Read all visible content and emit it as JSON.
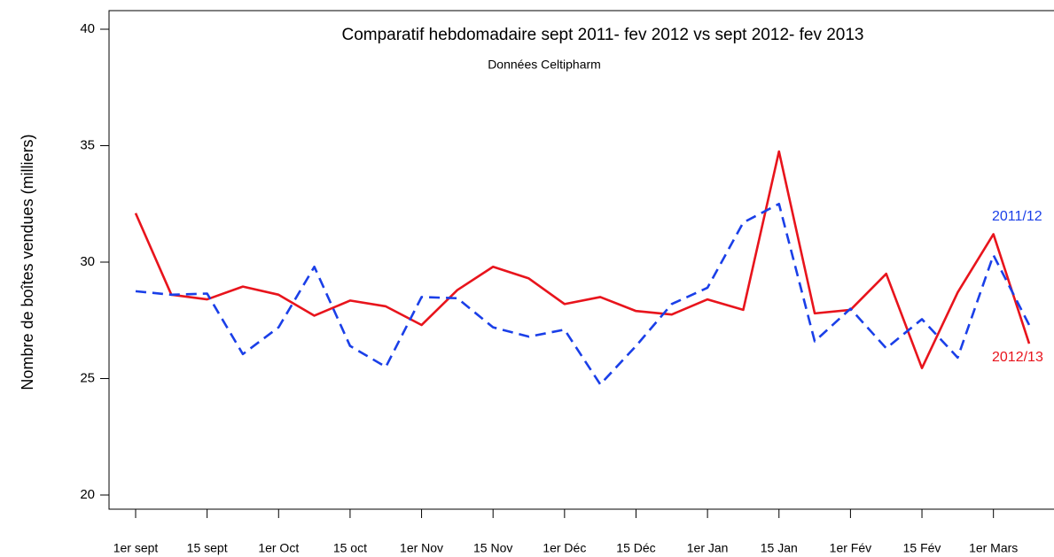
{
  "chart_data": {
    "type": "line",
    "title": "Comparatif hebdomadaire sept 2011- fev 2012 vs sept 2012- fev 2013",
    "subtitle": "Données Celtipharm",
    "y_label": "Nombre de boîtes vendues  (milliers)",
    "categories": [
      "1er sept",
      null,
      "15 sept",
      null,
      "1er Oct",
      null,
      "15 oct",
      null,
      "1er Nov",
      null,
      "15 Nov",
      null,
      "1er Déc",
      null,
      "15 Déc",
      null,
      "1er Jan",
      null,
      "15 Jan",
      null,
      "1er Fév",
      null,
      "15 Fév",
      null,
      "1er Mars",
      null
    ],
    "series": [
      {
        "name": "2012/13",
        "color": "#e8141c",
        "dashed": false,
        "values": [
          32.1,
          28.6,
          28.4,
          28.95,
          28.6,
          27.7,
          28.35,
          28.1,
          27.3,
          28.8,
          29.8,
          29.3,
          28.2,
          28.5,
          27.9,
          27.75,
          28.4,
          27.95,
          34.75,
          27.8,
          27.95,
          29.5,
          25.45,
          28.7,
          31.2,
          26.5
        ]
      },
      {
        "name": "2011/12",
        "color": "#1a3fe8",
        "dashed": true,
        "values": [
          28.75,
          28.6,
          28.65,
          26.05,
          27.2,
          29.8,
          26.4,
          25.5,
          28.5,
          28.45,
          27.2,
          26.8,
          27.1,
          24.75,
          26.4,
          28.2,
          28.9,
          31.7,
          32.5,
          26.6,
          28.0,
          26.3,
          27.55,
          25.9,
          30.3,
          27.3
        ]
      }
    ],
    "ylim": [
      20,
      40
    ],
    "yticks": [
      20,
      25,
      30,
      35,
      40
    ],
    "grid": false
  }
}
